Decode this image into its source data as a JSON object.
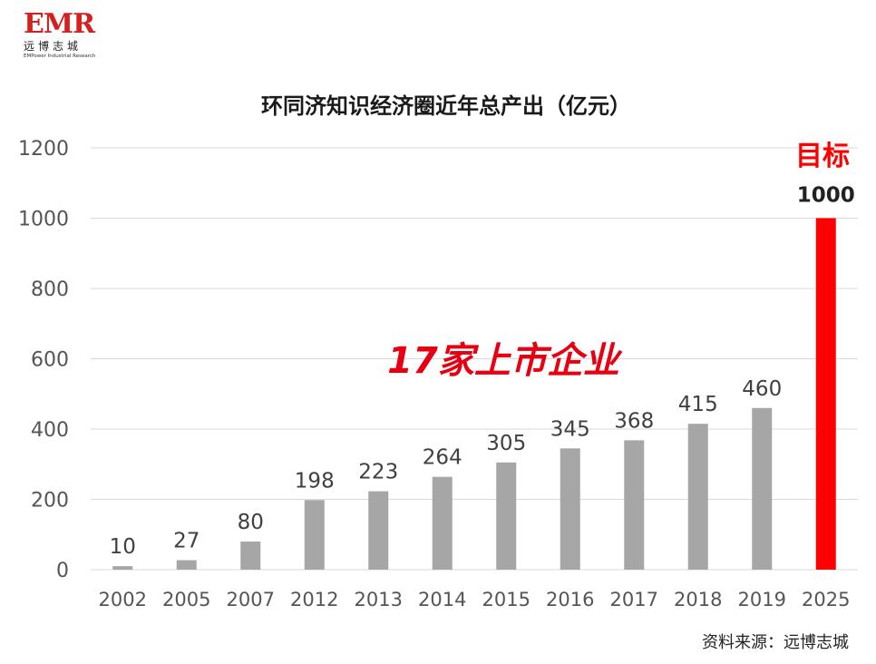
{
  "logo": {
    "mark": "EMR",
    "cn": "远博志城",
    "en": "EMPower Industrial Research"
  },
  "source": "资料来源：远博志城",
  "annotation": "17家上市企业",
  "target_label": "目标",
  "colors": {
    "bar": "#a6a6a6",
    "highlight": "#ff0000",
    "grid": "#d9d9d9",
    "annotation": "#e60012"
  },
  "chart_data": {
    "type": "bar",
    "title": "环同济知识经济圈近年总产出（亿元）",
    "categories": [
      "2002",
      "2005",
      "2007",
      "2012",
      "2013",
      "2014",
      "2015",
      "2016",
      "2017",
      "2018",
      "2019",
      "2025"
    ],
    "values": [
      10,
      27,
      80,
      198,
      223,
      264,
      305,
      345,
      368,
      415,
      460,
      1000
    ],
    "highlight_index": 11,
    "ylim": [
      0,
      1200
    ],
    "yticks": [
      0,
      200,
      400,
      600,
      800,
      1000,
      1200
    ],
    "grid": true,
    "xlabel": "",
    "ylabel": ""
  }
}
